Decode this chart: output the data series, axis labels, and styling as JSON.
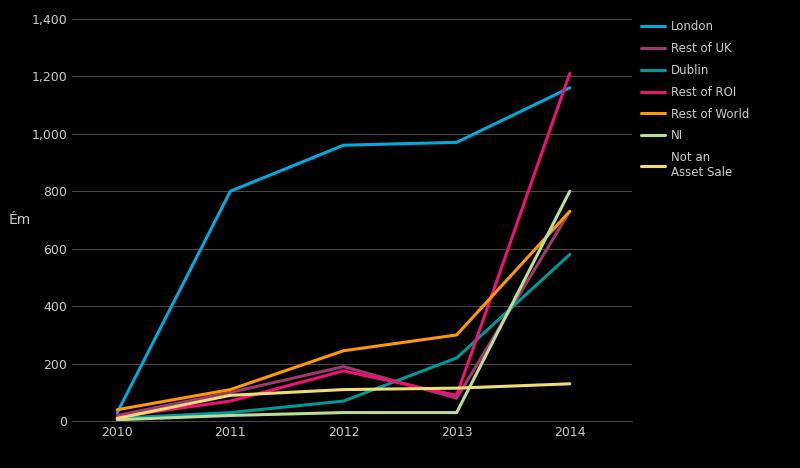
{
  "ylabel": "Ém",
  "years": [
    2010,
    2011,
    2012,
    2013,
    2014
  ],
  "series": {
    "London": [
      30,
      800,
      960,
      970,
      1160
    ],
    "Rest of UK": [
      20,
      100,
      190,
      80,
      730
    ],
    "Dublin": [
      10,
      30,
      70,
      220,
      580
    ],
    "Rest of ROI": [
      15,
      70,
      175,
      90,
      1210
    ],
    "Rest of World": [
      40,
      110,
      245,
      300,
      730
    ],
    "NI": [
      5,
      20,
      30,
      30,
      800
    ],
    "Not an\nAsset Sale": [
      10,
      90,
      110,
      115,
      130
    ]
  },
  "colors": {
    "London": "#00AADD",
    "Rest of UK": "#9B3A6B",
    "Dublin": "#009999",
    "Rest of ROI": "#EE1177",
    "Rest of World": "#FF9900",
    "NI": "#BBDD99",
    "Not an\nAsset Sale": "#EEDD77"
  },
  "ylim": [
    0,
    1400
  ],
  "yticks": [
    0,
    200,
    400,
    600,
    800,
    1000,
    1200,
    1400
  ],
  "bg_color": "#000000",
  "text_color": "#cccccc",
  "grid_color": "#555555",
  "line_width": 2.2
}
